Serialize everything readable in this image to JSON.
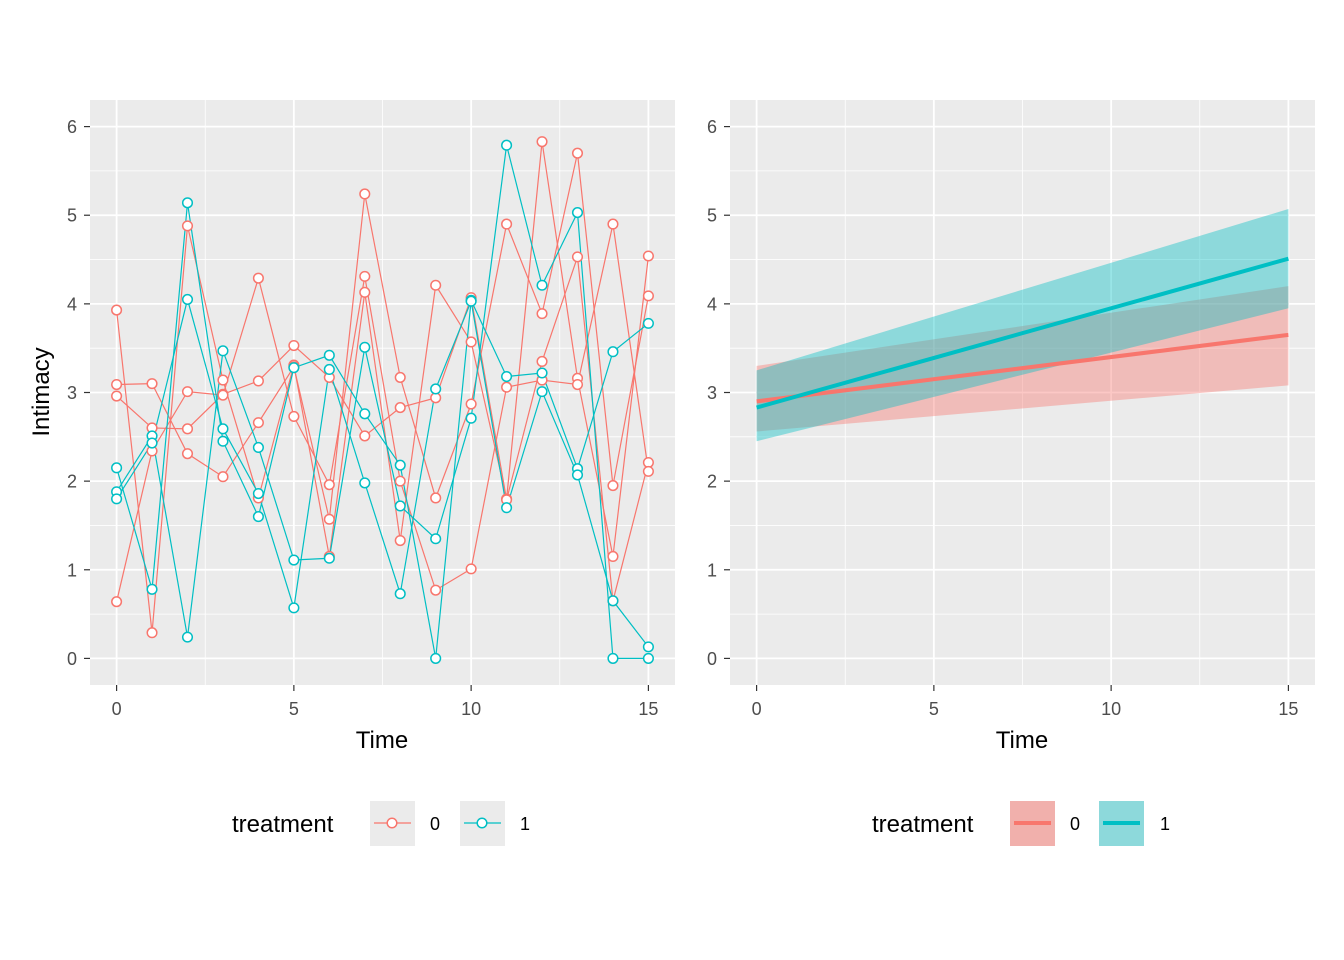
{
  "chart_data": [
    {
      "type": "line",
      "xlabel": "Time",
      "ylabel": "Intimacy",
      "xlim": [
        -0.75,
        15.75
      ],
      "ylim": [
        -0.3,
        6.3
      ],
      "x_ticks": [
        0,
        5,
        10,
        15
      ],
      "x_tick_labels": [
        "0",
        "5",
        "10",
        "15"
      ],
      "y_ticks": [
        0,
        1,
        2,
        3,
        4,
        5,
        6
      ],
      "y_tick_labels": [
        "0",
        "1",
        "2",
        "3",
        "4",
        "5",
        "6"
      ],
      "grid": true,
      "legend": {
        "title": "treatment",
        "position": "bottom",
        "labels": [
          "0",
          "1"
        ]
      },
      "x": [
        0,
        1,
        2,
        3,
        4,
        5,
        6,
        7,
        8,
        9,
        10,
        11,
        12,
        13,
        14,
        15
      ],
      "series": [
        {
          "group": "0",
          "color": "#F8766D",
          "values": [
            3.93,
            0.29,
            4.88,
            3.14,
            1.81,
            3.31,
            1.15,
            4.13,
            1.33,
            4.21,
            3.57,
            1.8,
            5.83,
            3.16,
            1.15,
            4.54
          ]
        },
        {
          "group": "0",
          "color": "#F8766D",
          "values": [
            3.09,
            3.1,
            2.31,
            2.05,
            2.66,
            3.29,
            1.57,
            5.24,
            3.17,
            1.81,
            2.87,
            4.9,
            3.89,
            5.7,
            1.95,
            4.09
          ]
        },
        {
          "group": "0",
          "color": "#F8766D",
          "values": [
            2.96,
            2.6,
            2.59,
            2.98,
            3.13,
            3.53,
            3.17,
            2.51,
            2.83,
            2.94,
            4.07,
            1.79,
            3.35,
            4.53,
            0.65,
            2.21
          ]
        },
        {
          "group": "0",
          "color": "#F8766D",
          "values": [
            0.64,
            2.34,
            3.01,
            2.97,
            4.29,
            2.73,
            1.96,
            4.31,
            2.0,
            0.77,
            1.01,
            3.06,
            3.14,
            3.09,
            4.9,
            2.11
          ]
        },
        {
          "group": "1",
          "color": "#00BFC4",
          "values": [
            2.15,
            0.78,
            5.14,
            2.45,
            1.6,
            3.28,
            3.42,
            2.76,
            2.18,
            0.0,
            4.04,
            3.18,
            3.22,
            2.14,
            3.46,
            3.78
          ]
        },
        {
          "group": "1",
          "color": "#00BFC4",
          "values": [
            1.88,
            2.51,
            0.24,
            3.47,
            2.38,
            1.11,
            1.13,
            3.51,
            1.72,
            1.35,
            2.71,
            5.79,
            4.21,
            5.03,
            0.0,
            0.0
          ]
        },
        {
          "group": "1",
          "color": "#00BFC4",
          "values": [
            1.8,
            2.43,
            4.05,
            2.59,
            1.86,
            0.57,
            3.26,
            1.98,
            0.73,
            3.04,
            4.03,
            1.7,
            3.01,
            2.07,
            0.65,
            0.13
          ]
        }
      ]
    },
    {
      "type": "line",
      "xlabel": "Time",
      "ylabel": "",
      "xlim": [
        -0.75,
        15.75
      ],
      "ylim": [
        -0.3,
        6.3
      ],
      "x_ticks": [
        0,
        5,
        10,
        15
      ],
      "x_tick_labels": [
        "0",
        "5",
        "10",
        "15"
      ],
      "y_ticks": [
        0,
        1,
        2,
        3,
        4,
        5,
        6
      ],
      "y_tick_labels": [
        "0",
        "1",
        "2",
        "3",
        "4",
        "5",
        "6"
      ],
      "grid": true,
      "legend": {
        "title": "treatment",
        "position": "bottom",
        "labels": [
          "0",
          "1"
        ]
      },
      "x": [
        0,
        15
      ],
      "series": [
        {
          "group": "0",
          "color": "#F8766D",
          "values": [
            2.9,
            3.65
          ],
          "lower": [
            2.56,
            3.08
          ],
          "upper": [
            3.3,
            4.2
          ]
        },
        {
          "group": "1",
          "color": "#00BFC4",
          "values": [
            2.83,
            4.51
          ],
          "lower": [
            2.45,
            3.95
          ],
          "upper": [
            3.25,
            5.07
          ]
        }
      ]
    }
  ]
}
